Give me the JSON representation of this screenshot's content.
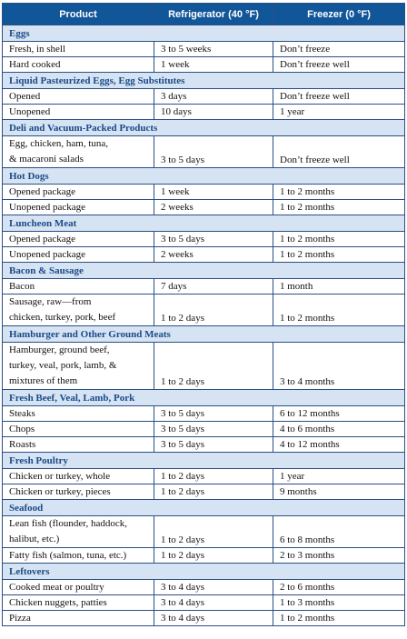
{
  "headers": {
    "product": "Product",
    "refrigerator": "Refrigerator (40 °F)",
    "freezer": "Freezer (0 °F)"
  },
  "sections": [
    {
      "name": "Eggs",
      "rows": [
        {
          "product": [
            "Fresh, in shell"
          ],
          "refrigerator": "3 to 5 weeks",
          "freezer": "Don’t freeze"
        },
        {
          "product": [
            "Hard cooked"
          ],
          "refrigerator": "1 week",
          "freezer": "Don’t freeze well"
        }
      ]
    },
    {
      "name": "Liquid Pasteurized Eggs, Egg Substitutes",
      "rows": [
        {
          "product": [
            "Opened"
          ],
          "refrigerator": "3 days",
          "freezer": "Don’t freeze well"
        },
        {
          "product": [
            "Unopened"
          ],
          "refrigerator": "10 days",
          "freezer": "1 year"
        }
      ]
    },
    {
      "name": "Deli and Vacuum-Packed Products",
      "rows": [
        {
          "product": [
            "Egg, chicken, ham, tuna,",
            "& macaroni salads"
          ],
          "refrigerator": "3 to 5 days",
          "freezer": "Don’t freeze well"
        }
      ]
    },
    {
      "name": "Hot Dogs",
      "rows": [
        {
          "product": [
            "Opened package"
          ],
          "refrigerator": "1 week",
          "freezer": "1 to 2 months"
        },
        {
          "product": [
            "Unopened package"
          ],
          "refrigerator": "2 weeks",
          "freezer": "1 to 2 months"
        }
      ]
    },
    {
      "name": "Luncheon Meat",
      "rows": [
        {
          "product": [
            "Opened package"
          ],
          "refrigerator": "3 to 5 days",
          "freezer": "1 to 2 months"
        },
        {
          "product": [
            "Unopened package"
          ],
          "refrigerator": "2 weeks",
          "freezer": "1 to 2 months"
        }
      ]
    },
    {
      "name": "Bacon & Sausage",
      "rows": [
        {
          "product": [
            "Bacon"
          ],
          "refrigerator": "7 days",
          "freezer": "1 month"
        },
        {
          "product": [
            "Sausage, raw—from",
            "chicken, turkey, pork, beef"
          ],
          "refrigerator": "1 to 2 days",
          "freezer": "1 to 2 months"
        }
      ]
    },
    {
      "name": "Hamburger and Other Ground Meats",
      "rows": [
        {
          "product": [
            "Hamburger, ground beef,",
            "turkey, veal, pork, lamb, &",
            "mixtures of them"
          ],
          "refrigerator": "1 to 2 days",
          "freezer": "3 to 4 months"
        }
      ]
    },
    {
      "name": "Fresh Beef, Veal, Lamb, Pork",
      "rows": [
        {
          "product": [
            "Steaks"
          ],
          "refrigerator": "3 to 5 days",
          "freezer": "6 to 12 months"
        },
        {
          "product": [
            "Chops"
          ],
          "refrigerator": "3 to 5 days",
          "freezer": "4 to 6 months"
        },
        {
          "product": [
            "Roasts"
          ],
          "refrigerator": "3 to 5 days",
          "freezer": "4 to 12 months"
        }
      ]
    },
    {
      "name": "Fresh Poultry",
      "rows": [
        {
          "product": [
            "Chicken or turkey, whole"
          ],
          "refrigerator": "1 to 2 days",
          "freezer": "1 year"
        },
        {
          "product": [
            "Chicken or turkey, pieces"
          ],
          "refrigerator": "1 to 2 days",
          "freezer": "9 months"
        }
      ]
    },
    {
      "name": "Seafood",
      "rows": [
        {
          "product": [
            "Lean fish (flounder, haddock,",
            "halibut, etc.)"
          ],
          "refrigerator": "1 to 2 days",
          "freezer": "6 to 8 months"
        },
        {
          "product": [
            "Fatty fish (salmon, tuna, etc.)"
          ],
          "refrigerator": "1 to 2 days",
          "freezer": "2 to 3 months"
        }
      ]
    },
    {
      "name": "Leftovers",
      "rows": [
        {
          "product": [
            "Cooked meat or poultry"
          ],
          "refrigerator": "3 to 4 days",
          "freezer": "2 to 6 months"
        },
        {
          "product": [
            "Chicken nuggets, patties"
          ],
          "refrigerator": "3 to 4 days",
          "freezer": "1 to 3 months"
        },
        {
          "product": [
            "Pizza"
          ],
          "refrigerator": "3 to 4 days",
          "freezer": "1 to 2 months"
        }
      ]
    }
  ]
}
